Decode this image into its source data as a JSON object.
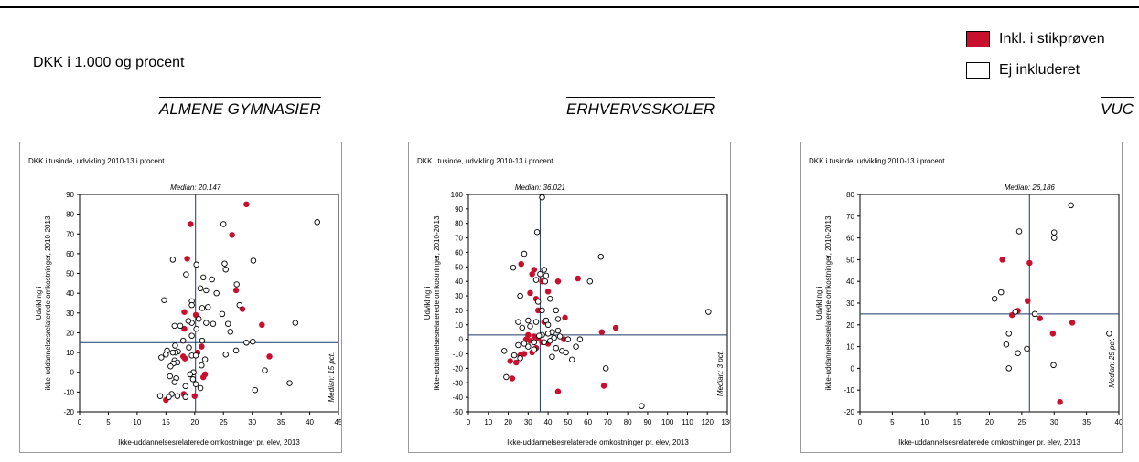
{
  "header": {
    "subtitle": "DKK i 1.000 og procent"
  },
  "legend": {
    "items": [
      {
        "label": "Inkl. i stikprøven",
        "color": "#c8102e"
      },
      {
        "label": "Ej inkluderet",
        "color": "#ffffff"
      }
    ]
  },
  "sections": [
    {
      "title": "ALMENE GYMNASIER"
    },
    {
      "title": "ERHVERVSSKOLER"
    },
    {
      "title": "VUC"
    }
  ],
  "colors": {
    "included": "#c8102e",
    "excluded": "#ffffff",
    "line": "#1f3864"
  },
  "chart_data": [
    {
      "type": "scatter",
      "title": "DKK i tusinde, udvikling 2010-13 i procent",
      "xlabel": "Ikke-uddannelsesrelaterede omkostninger pr. elev, 2013",
      "ylabel": "Udvikling i ikke-uddannelsesrelaterede omkostninger, 2010-2013",
      "xlim": [
        0,
        45
      ],
      "ylim": [
        -20,
        90
      ],
      "xticks": [
        0,
        5,
        10,
        15,
        20,
        25,
        30,
        35,
        40,
        45
      ],
      "yticks": [
        -20,
        -10,
        0,
        10,
        20,
        30,
        40,
        50,
        60,
        70,
        80,
        90
      ],
      "median_x": 20.147,
      "median_x_label": "Median: 20.147",
      "median_y": 15,
      "median_y_label": "Median: 15 pct.",
      "series": [
        {
          "name": "Inkl. i stikprøven",
          "points": [
            [
              19.3,
              75
            ],
            [
              29,
              85
            ],
            [
              26.5,
              69.5
            ],
            [
              18.7,
              57.5
            ],
            [
              27.2,
              41.5
            ],
            [
              28.3,
              32
            ],
            [
              31.7,
              24
            ],
            [
              18.2,
              30.5
            ],
            [
              20.2,
              29
            ],
            [
              18.2,
              22
            ],
            [
              21.2,
              13
            ],
            [
              18,
              8
            ],
            [
              18.3,
              7
            ],
            [
              20.5,
              10
            ],
            [
              21.8,
              -1
            ],
            [
              21.5,
              -2.5
            ],
            [
              20,
              -12
            ],
            [
              18.1,
              -11
            ],
            [
              33,
              8
            ],
            [
              15,
              -14
            ]
          ]
        },
        {
          "name": "Ej inkluderet",
          "points": [
            [
              41.3,
              76
            ],
            [
              25,
              75
            ],
            [
              16.2,
              57
            ],
            [
              30.2,
              56.5
            ],
            [
              20.3,
              54.5
            ],
            [
              25.2,
              55
            ],
            [
              25.4,
              52
            ],
            [
              18.5,
              49.5
            ],
            [
              21.5,
              48
            ],
            [
              23,
              47
            ],
            [
              27.3,
              44.5
            ],
            [
              22,
              41.5
            ],
            [
              23.8,
              40
            ],
            [
              21,
              42.5
            ],
            [
              19.5,
              36
            ],
            [
              19.5,
              34
            ],
            [
              14.7,
              36.5
            ],
            [
              27.8,
              34
            ],
            [
              22.3,
              33
            ],
            [
              21.3,
              32.5
            ],
            [
              24.8,
              29.5
            ],
            [
              37.5,
              25
            ],
            [
              19.5,
              25
            ],
            [
              20.7,
              27
            ],
            [
              18.9,
              26
            ],
            [
              17.5,
              23.5
            ],
            [
              16.5,
              23.5
            ],
            [
              20.3,
              22
            ],
            [
              23.2,
              24.5
            ],
            [
              22,
              25
            ],
            [
              25.8,
              24.5
            ],
            [
              26.2,
              20.5
            ],
            [
              19.5,
              18.5
            ],
            [
              21.3,
              16
            ],
            [
              18,
              16
            ],
            [
              16.6,
              13.5
            ],
            [
              19,
              12.5
            ],
            [
              17.1,
              10.5
            ],
            [
              16.7,
              10
            ],
            [
              16.2,
              10
            ],
            [
              15.2,
              11
            ],
            [
              15,
              9
            ],
            [
              19.5,
              8.5
            ],
            [
              20.2,
              8.5
            ],
            [
              21.8,
              6.5
            ],
            [
              14.2,
              7.5
            ],
            [
              16.5,
              6
            ],
            [
              17,
              5
            ],
            [
              16.3,
              4.5
            ],
            [
              15.8,
              3
            ],
            [
              21.2,
              3.5
            ],
            [
              25.4,
              9
            ],
            [
              27.2,
              11
            ],
            [
              29,
              15
            ],
            [
              30.1,
              15.5
            ],
            [
              19.8,
              0
            ],
            [
              19.2,
              -1
            ],
            [
              19.7,
              -3.5
            ],
            [
              16.8,
              -3
            ],
            [
              15.7,
              -2
            ],
            [
              16.5,
              -5
            ],
            [
              32.2,
              1
            ],
            [
              36.5,
              -5.5
            ],
            [
              30.5,
              -9
            ],
            [
              21,
              -8
            ],
            [
              20.2,
              -6
            ],
            [
              18.4,
              -7
            ],
            [
              16,
              -11
            ],
            [
              17,
              -12
            ],
            [
              14,
              -12
            ],
            [
              15.5,
              -12.5
            ],
            [
              18.4,
              -12.5
            ]
          ]
        }
      ]
    },
    {
      "type": "scatter",
      "title": "DKK i tusinde, udvikling 2010-13 i procent",
      "xlabel": "Ikke-uddannelsesrelaterede omkostninger pr. elev, 2013",
      "ylabel": "Udvikling i ikke-uddannelsesrelaterede omkostninger, 2010-2013",
      "xlim": [
        0,
        130
      ],
      "ylim": [
        -50,
        100
      ],
      "xticks": [
        0,
        10,
        20,
        30,
        40,
        50,
        60,
        70,
        80,
        90,
        100,
        110,
        120,
        130
      ],
      "yticks": [
        -50,
        -40,
        -30,
        -20,
        -10,
        0,
        10,
        20,
        30,
        40,
        50,
        60,
        70,
        80,
        90,
        100
      ],
      "median_x": 36.021,
      "median_x_label": "Median: 36.021",
      "median_y": 3,
      "median_y_label": "Median: 3 pct.",
      "series": [
        {
          "name": "Inkl. i stikprøven",
          "points": [
            [
              26.5,
              52
            ],
            [
              33,
              48
            ],
            [
              32,
              45
            ],
            [
              37,
              40
            ],
            [
              55,
              42
            ],
            [
              45,
              40
            ],
            [
              40,
              33
            ],
            [
              31,
              32
            ],
            [
              34,
              28
            ],
            [
              35,
              20
            ],
            [
              38,
              12
            ],
            [
              48.5,
              15
            ],
            [
              74,
              8
            ],
            [
              67,
              5
            ],
            [
              30,
              3
            ],
            [
              33,
              2
            ],
            [
              35,
              1
            ],
            [
              29,
              0
            ],
            [
              31,
              -1
            ],
            [
              37,
              -2
            ],
            [
              40,
              -3
            ],
            [
              34,
              -6
            ],
            [
              32,
              -9
            ],
            [
              28,
              -10
            ],
            [
              26,
              -11
            ],
            [
              21,
              -15
            ],
            [
              24,
              -16
            ],
            [
              22,
              -27
            ],
            [
              68,
              -32
            ],
            [
              45,
              -36
            ],
            [
              48,
              0
            ]
          ]
        },
        {
          "name": "Ej inkluderet",
          "points": [
            [
              37,
              98
            ],
            [
              34.5,
              74
            ],
            [
              28,
              59
            ],
            [
              66.5,
              57
            ],
            [
              22.5,
              49.5
            ],
            [
              38,
              48
            ],
            [
              36,
              45
            ],
            [
              39,
              44
            ],
            [
              61,
              40
            ],
            [
              34,
              41
            ],
            [
              38.5,
              40
            ],
            [
              26,
              30
            ],
            [
              41,
              28
            ],
            [
              35,
              26
            ],
            [
              44,
              20
            ],
            [
              37,
              20
            ],
            [
              39,
              13
            ],
            [
              40,
              10
            ],
            [
              45,
              14
            ],
            [
              30,
              13
            ],
            [
              25,
              12
            ],
            [
              34,
              12
            ],
            [
              120.5,
              19
            ],
            [
              27,
              8
            ],
            [
              31,
              9
            ],
            [
              45,
              6
            ],
            [
              42,
              5
            ],
            [
              40,
              4
            ],
            [
              37,
              3
            ],
            [
              35.5,
              2.5
            ],
            [
              46,
              2
            ],
            [
              43,
              1
            ],
            [
              50,
              0
            ],
            [
              41,
              -1
            ],
            [
              38,
              -2
            ],
            [
              54,
              -5
            ],
            [
              56,
              0
            ],
            [
              44,
              -6
            ],
            [
              47,
              -8
            ],
            [
              49,
              -9
            ],
            [
              42,
              -12
            ],
            [
              52,
              -14
            ],
            [
              30,
              -5
            ],
            [
              28,
              -3
            ],
            [
              33,
              -7
            ],
            [
              23,
              -11
            ],
            [
              26,
              -13
            ],
            [
              18,
              -8
            ],
            [
              25,
              -4
            ],
            [
              69,
              -20
            ],
            [
              87,
              -46
            ],
            [
              19,
              -26
            ],
            [
              33,
              -2
            ]
          ]
        }
      ]
    },
    {
      "type": "scatter",
      "title": "DKK i tusinde, udvikling 2010-13 i procent",
      "xlabel": "Ikke-uddannelsesrelaterede omkostninger pr. elev, 2013",
      "ylabel": "Udvikling i ikke-uddannelsesrelaterede omkostninger, 2010-2013",
      "xlim": [
        0,
        40
      ],
      "ylim": [
        -20,
        80
      ],
      "xticks": [
        0,
        5,
        10,
        15,
        20,
        25,
        30,
        35,
        40
      ],
      "yticks": [
        -20,
        -10,
        0,
        10,
        20,
        30,
        40,
        50,
        60,
        70,
        80
      ],
      "median_x": 26.186,
      "median_x_label": "Median: 26,186",
      "median_y": 25,
      "median_y_label": "Median: 25 pct.",
      "series": [
        {
          "name": "Inkl. i stikprøven",
          "points": [
            [
              22,
              50
            ],
            [
              26.2,
              48.5
            ],
            [
              25.9,
              31
            ],
            [
              23.5,
              24.5
            ],
            [
              24.4,
              26.5
            ],
            [
              27.8,
              23
            ],
            [
              30.9,
              -15.5
            ],
            [
              32.8,
              21
            ],
            [
              29.8,
              16
            ]
          ]
        },
        {
          "name": "Ej inkluderet",
          "points": [
            [
              24.6,
              63
            ],
            [
              30,
              60
            ],
            [
              30,
              62.5
            ],
            [
              32.6,
              75
            ],
            [
              20.8,
              32
            ],
            [
              21.8,
              35
            ],
            [
              23,
              16
            ],
            [
              22.6,
              11
            ],
            [
              23,
              0
            ],
            [
              24.4,
              7
            ],
            [
              25.8,
              9
            ],
            [
              27,
              25
            ],
            [
              29.9,
              1.5
            ],
            [
              38.5,
              16
            ],
            [
              24,
              26
            ]
          ]
        }
      ]
    }
  ]
}
